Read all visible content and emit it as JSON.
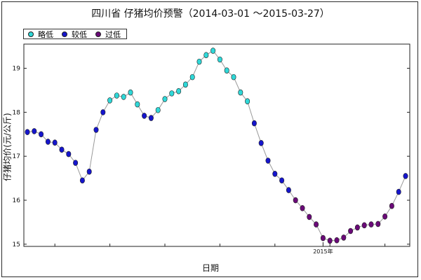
{
  "chart_data": {
    "type": "line",
    "title": "四川省 仔猪均价预警（2014-03-01 ～2015-03-27）",
    "xlabel": "日期",
    "ylabel": "仔猪均价(元/公斤)",
    "ylim": [
      14.95,
      19.55
    ],
    "yticks": [
      15,
      16,
      17,
      18,
      19
    ],
    "xtick_labels": [
      {
        "index": 43,
        "label": "2015年"
      }
    ],
    "legend": {
      "placement": "top-left",
      "entries": [
        {
          "label": "略低",
          "color": "#2fd8d8"
        },
        {
          "label": "较低",
          "color": "#1515cc"
        },
        {
          "label": "过低",
          "color": "#6a0a78"
        }
      ]
    },
    "grid": false,
    "line_color": "#999999",
    "series": [
      {
        "values": [
          17.55,
          17.57,
          17.5,
          17.33,
          17.31,
          17.15,
          17.05,
          16.85,
          16.45,
          16.65,
          17.6,
          18.0,
          18.27,
          18.38,
          18.35,
          18.45,
          18.18,
          17.92,
          17.87,
          18.05,
          18.3,
          18.43,
          18.48,
          18.63,
          18.8,
          19.15,
          19.3,
          19.4,
          19.2,
          18.95,
          18.8,
          18.45,
          18.25,
          17.75,
          17.3,
          16.9,
          16.6,
          16.45,
          16.23,
          16.0,
          15.82,
          15.62,
          15.45,
          15.14,
          15.08,
          15.09,
          15.15,
          15.3,
          15.38,
          15.43,
          15.45,
          15.46,
          15.63,
          15.87,
          16.19,
          16.55
        ],
        "levels": [
          "较低",
          "较低",
          "较低",
          "较低",
          "较低",
          "较低",
          "较低",
          "较低",
          "较低",
          "较低",
          "较低",
          "较低",
          "略低",
          "略低",
          "略低",
          "略低",
          "略低",
          "较低",
          "较低",
          "略低",
          "略低",
          "略低",
          "略低",
          "略低",
          "略低",
          "略低",
          "略低",
          "略低",
          "略低",
          "略低",
          "略低",
          "略低",
          "略低",
          "较低",
          "较低",
          "较低",
          "较低",
          "较低",
          "较低",
          "过低",
          "过低",
          "过低",
          "过低",
          "过低",
          "过低",
          "过低",
          "过低",
          "过低",
          "过低",
          "过低",
          "过低",
          "过低",
          "过低",
          "过低",
          "较低",
          "较低"
        ]
      }
    ]
  }
}
